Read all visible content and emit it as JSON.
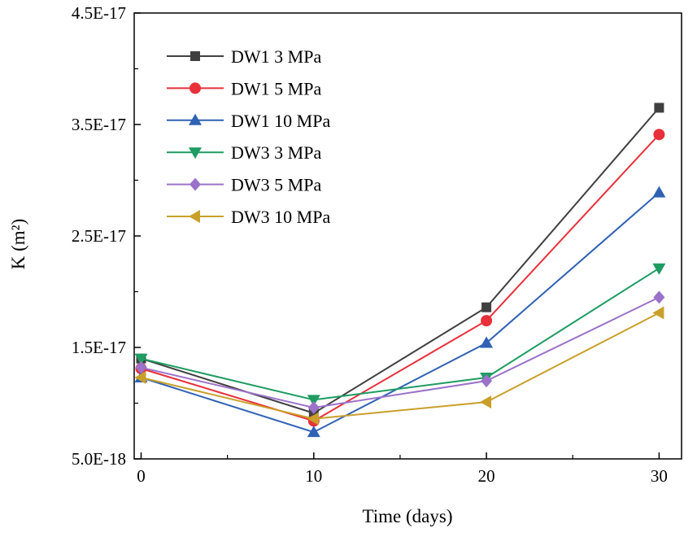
{
  "chart_data": {
    "type": "line",
    "title": "",
    "xlabel": "Time (days)",
    "ylabel": "K (m²)",
    "x": [
      0,
      10,
      20,
      30
    ],
    "xlim": [
      -0.4,
      31.3
    ],
    "ylim": [
      5e-18,
      4.5e-17
    ],
    "xticks": [
      0,
      10,
      20,
      30
    ],
    "xtick_labels": [
      "0",
      "10",
      "20",
      "30"
    ],
    "yticks": [
      5e-18,
      1.5e-17,
      2.5e-17,
      3.5e-17,
      4.5e-17
    ],
    "ytick_labels": [
      "5.0E-18",
      "1.5E-17",
      "2.5E-17",
      "3.5E-17",
      "4.5E-17"
    ],
    "grid": false,
    "legend_position": "top-left",
    "series": [
      {
        "name": "DW1 3 MPa",
        "color": "#404040",
        "marker": "square",
        "values": [
          1.4e-17,
          9.1e-18,
          1.86e-17,
          3.65e-17
        ]
      },
      {
        "name": "DW1 5 MPa",
        "color": "#e8303a",
        "marker": "circle",
        "values": [
          1.31e-17,
          8.4e-18,
          1.74e-17,
          3.41e-17
        ]
      },
      {
        "name": "DW1 10 MPa",
        "color": "#2f62b4",
        "marker": "triangle-up",
        "values": [
          1.23e-17,
          7.4e-18,
          1.54e-17,
          2.89e-17
        ]
      },
      {
        "name": "DW3 3 MPa",
        "color": "#1e9c62",
        "marker": "triangle-down",
        "values": [
          1.4e-17,
          1.03e-17,
          1.23e-17,
          2.21e-17
        ]
      },
      {
        "name": "DW3 5 MPa",
        "color": "#9b72c9",
        "marker": "diamond",
        "values": [
          1.32e-17,
          9.6e-18,
          1.2e-17,
          1.95e-17
        ]
      },
      {
        "name": "DW3 10 MPa",
        "color": "#c9a02a",
        "marker": "triangle-left",
        "values": [
          1.23e-17,
          8.6e-18,
          1.01e-17,
          1.81e-17
        ]
      }
    ]
  }
}
